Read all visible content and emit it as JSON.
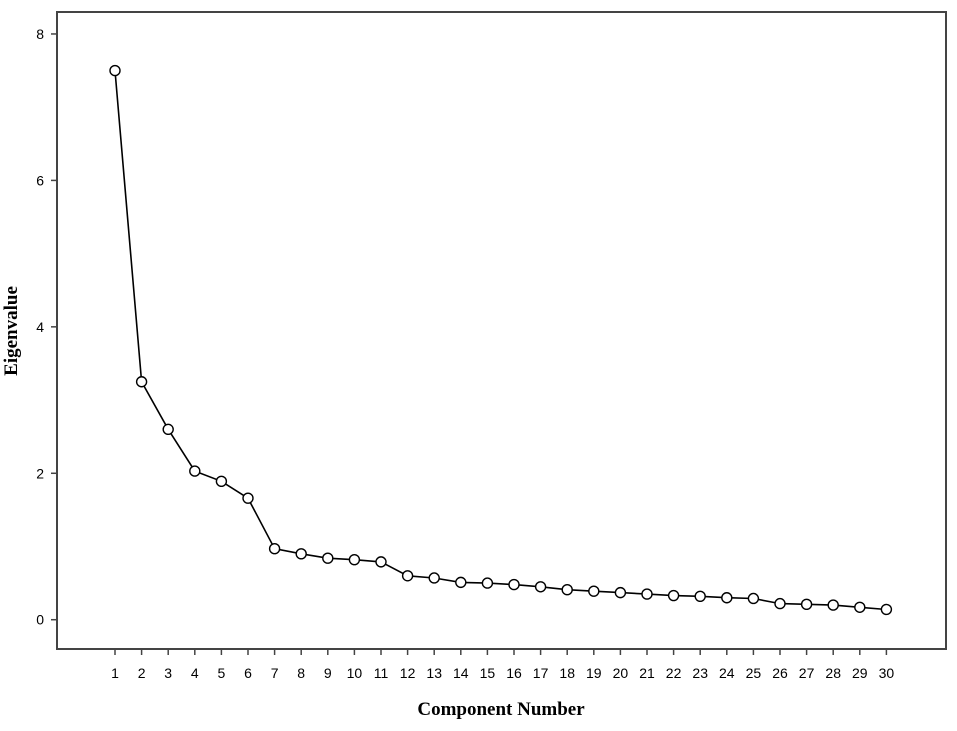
{
  "chart_data": {
    "type": "line",
    "title": "",
    "xlabel": "Component Number",
    "ylabel": "Eigenvalue",
    "x": [
      1,
      2,
      3,
      4,
      5,
      6,
      7,
      8,
      9,
      10,
      11,
      12,
      13,
      14,
      15,
      16,
      17,
      18,
      19,
      20,
      21,
      22,
      23,
      24,
      25,
      26,
      27,
      28,
      29,
      30
    ],
    "y": [
      7.5,
      3.25,
      2.6,
      2.03,
      1.89,
      1.66,
      0.97,
      0.9,
      0.84,
      0.82,
      0.79,
      0.6,
      0.57,
      0.51,
      0.5,
      0.48,
      0.45,
      0.41,
      0.39,
      0.37,
      0.35,
      0.33,
      0.32,
      0.3,
      0.29,
      0.22,
      0.21,
      0.2,
      0.17,
      0.14
    ],
    "ylim": [
      -0.4,
      8.3
    ],
    "yticks": [
      0,
      2,
      4,
      6,
      8
    ],
    "grid": false,
    "marker": "open-circle",
    "colors": {
      "line": "#000000",
      "marker": "#000000",
      "frame": "#444444"
    }
  }
}
